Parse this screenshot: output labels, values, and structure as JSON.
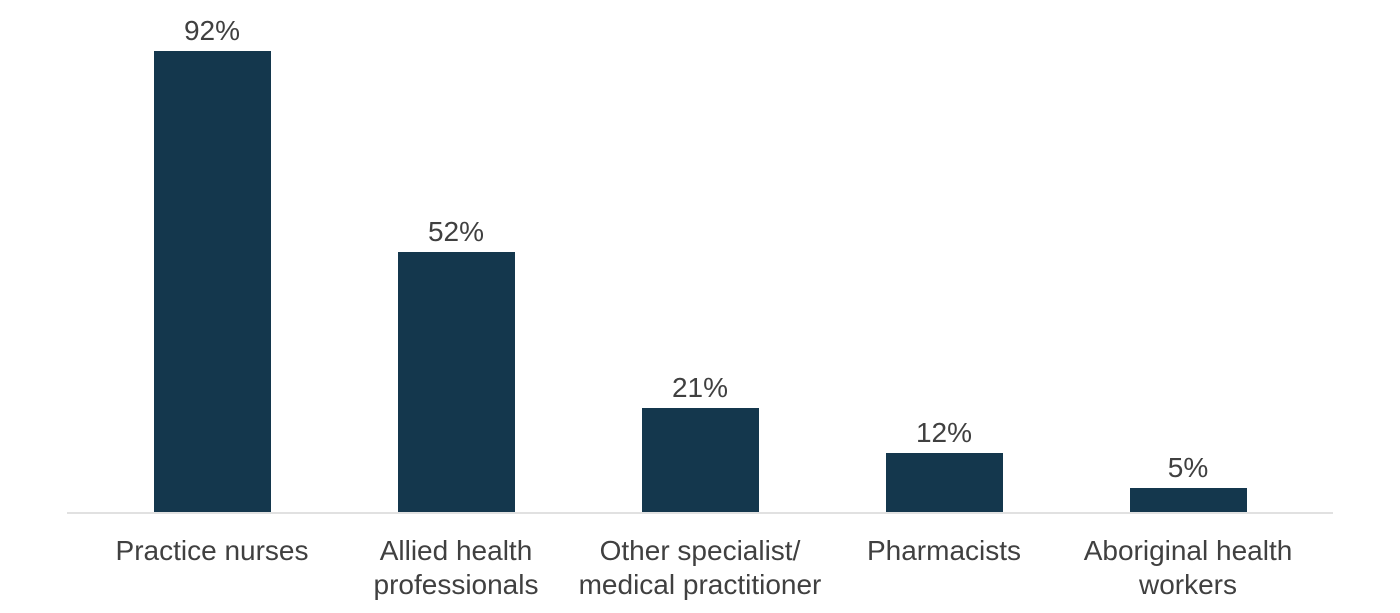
{
  "chart_data": {
    "type": "bar",
    "title": "",
    "xlabel": "",
    "ylabel": "",
    "categories": [
      "Practice nurses",
      "Allied health\nprofessionals",
      "Other specialist/\nmedical practitioner",
      "Pharmacists",
      "Aboriginal health\nworkers"
    ],
    "values": [
      92,
      52,
      21,
      12,
      5
    ],
    "value_labels": [
      "92%",
      "52%",
      "21%",
      "12%",
      "5%"
    ],
    "ylim": [
      0,
      100
    ],
    "grid": false,
    "legend": false,
    "axis": "x-baseline-only",
    "colors": {
      "bar": "#14374d",
      "axis_line": "#e1e1e1",
      "text": "#404040",
      "background": "#ffffff"
    }
  }
}
